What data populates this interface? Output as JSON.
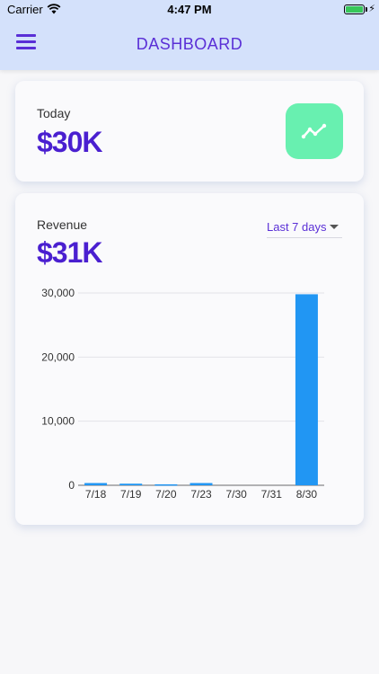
{
  "status_bar": {
    "carrier": "Carrier",
    "time": "4:47 PM"
  },
  "header": {
    "title": "DASHBOARD"
  },
  "today_card": {
    "label": "Today",
    "value": "$30K"
  },
  "revenue_card": {
    "label": "Revenue",
    "value": "$31K",
    "range": "Last 7 days"
  },
  "colors": {
    "accent": "#5a2fd6",
    "value": "#4a1fd0",
    "bar": "#2196f3",
    "trend": "#68f0b0",
    "header": "#d4e1fb"
  },
  "icons": {
    "menu": "hamburger-icon",
    "trend": "trend-line-icon",
    "dropdown": "caret-down-icon"
  },
  "chart_data": {
    "type": "bar",
    "categories": [
      "7/18",
      "7/19",
      "7/20",
      "7/23",
      "7/30",
      "7/31",
      "8/30"
    ],
    "values": [
      350,
      250,
      150,
      350,
      0,
      0,
      29800
    ],
    "yticks": [
      "30,000",
      "20,000",
      "10,000",
      "0"
    ],
    "ytick_values": [
      30000,
      20000,
      10000,
      0
    ],
    "ylim": [
      0,
      30000
    ],
    "grid": true
  }
}
